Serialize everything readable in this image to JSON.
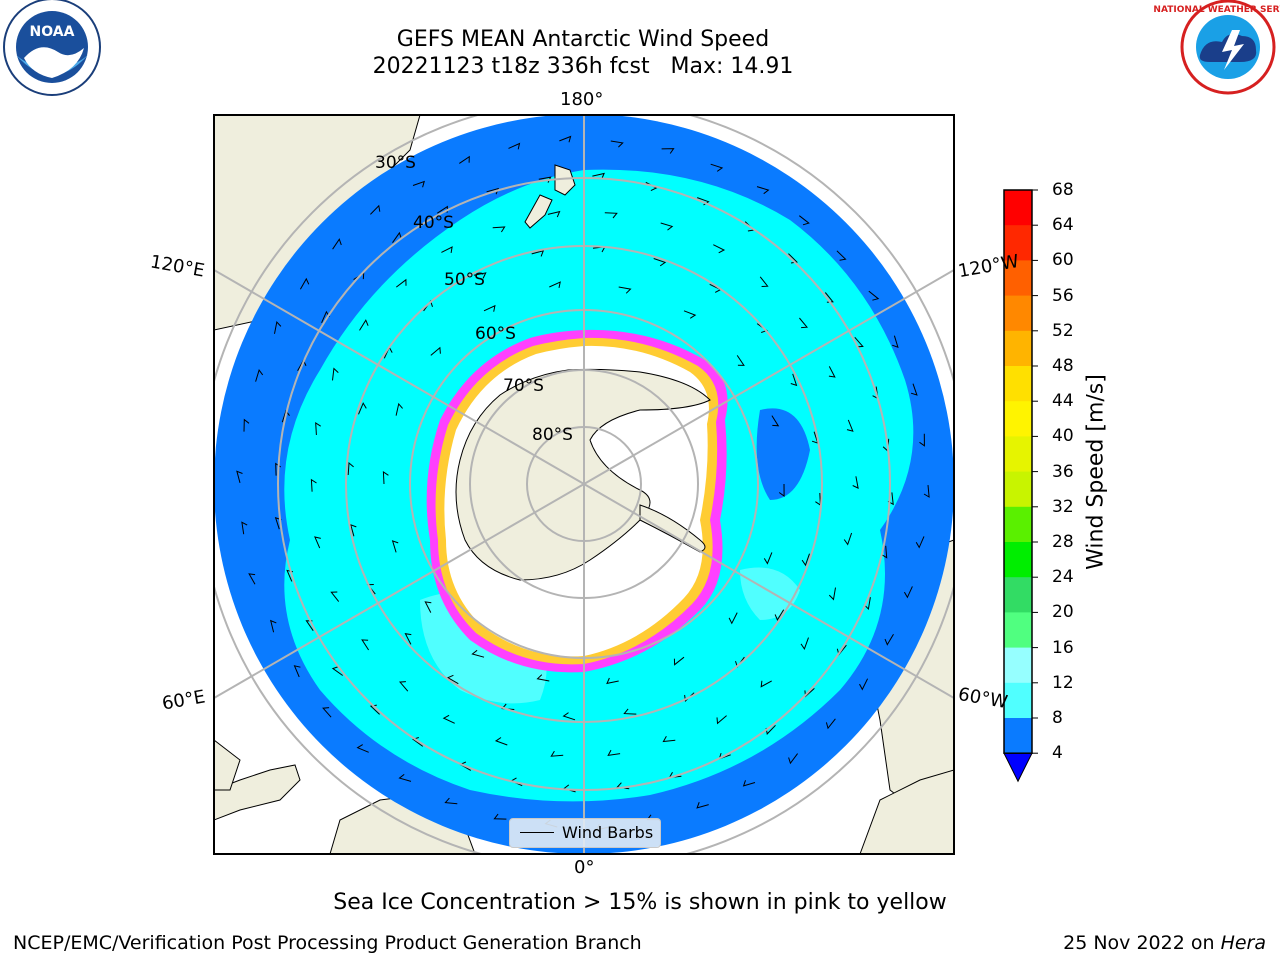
{
  "header": {
    "title": "GEFS MEAN Antarctic Wind Speed",
    "subtitle": "20221123 t18z 336h fcst   Max: 14.91"
  },
  "logos": {
    "left": "noa-logo",
    "left_text": "NOAA",
    "right": "nws-logo",
    "right_text": "NATIONAL WEATHER SERVICE"
  },
  "map": {
    "projection": "south-polar-stereographic",
    "lon_labels": {
      "top": "180°",
      "bottom": "0°",
      "upper_left": "120°E",
      "upper_right": "120°W",
      "lower_left": "60°E",
      "lower_right": "60°W"
    },
    "lat_labels": [
      "30°S",
      "40°S",
      "50°S",
      "60°S",
      "70°S",
      "80°S"
    ],
    "legend_label": "Wind Barbs",
    "colors": {
      "ocean_low": "#0a7bff",
      "ocean_mid": "#00ffff",
      "land": "#efeedd",
      "ice": "#ffffff",
      "grid": "#b4b4b4"
    }
  },
  "colorbar": {
    "label": "Wind Speed [m/s]",
    "ticks": [
      "68",
      "64",
      "60",
      "56",
      "52",
      "48",
      "44",
      "40",
      "36",
      "32",
      "28",
      "24",
      "20",
      "16",
      "12",
      "8",
      "4"
    ],
    "colors": [
      "#ff0000",
      "#ff2800",
      "#ff6000",
      "#ff8800",
      "#ffb400",
      "#ffe000",
      "#fff400",
      "#e6f400",
      "#c8f400",
      "#5af000",
      "#00ee00",
      "#32dc64",
      "#50ff80",
      "#96ffff",
      "#50ffff",
      "#00ffff",
      "#0a7bff"
    ],
    "under_color": "#0000ff"
  },
  "note": "Sea Ice Concentration > 15% is shown in pink to yellow",
  "footer": {
    "left": "NCEP/EMC/Verification Post Processing Product Generation Branch",
    "right_date": "25 Nov 2022 on ",
    "right_machine": "Hera"
  }
}
